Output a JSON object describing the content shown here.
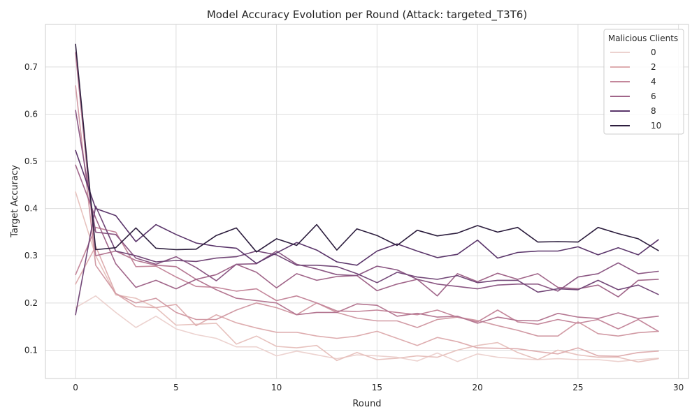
{
  "chart_data": {
    "type": "line",
    "title": "Model Accuracy Evolution per Round (Attack: targeted_T3T6)",
    "xlabel": "Round",
    "ylabel": "Target Accuracy",
    "xlim": [
      -1.5,
      30.5
    ],
    "ylim": [
      0.04,
      0.79
    ],
    "xticks": [
      0,
      5,
      10,
      15,
      20,
      25,
      30
    ],
    "yticks": [
      0.1,
      0.2,
      0.3,
      0.4,
      0.5,
      0.6,
      0.7
    ],
    "ytick_labels": [
      "0.1",
      "0.2",
      "0.3",
      "0.4",
      "0.5",
      "0.6",
      "0.7"
    ],
    "grid": true,
    "legend_title": "Malicious Clients",
    "legend_position": "top-right",
    "legend_entries": [
      "0",
      "2",
      "4",
      "6",
      "8",
      "10"
    ],
    "x": [
      0,
      1,
      2,
      3,
      4,
      5,
      6,
      7,
      8,
      9,
      10,
      11,
      12,
      13,
      14,
      15,
      16,
      17,
      18,
      19,
      20,
      21,
      22,
      23,
      24,
      25,
      26,
      27,
      28,
      29
    ],
    "series": [
      {
        "name": "0",
        "color": "#ecd2cf",
        "values": [
          0.19,
          0.215,
          0.18,
          0.148,
          0.172,
          0.145,
          0.133,
          0.125,
          0.107,
          0.107,
          0.088,
          0.098,
          0.09,
          0.082,
          0.09,
          0.088,
          0.085,
          0.077,
          0.094,
          0.076,
          0.092,
          0.085,
          0.082,
          0.08,
          0.082,
          0.08,
          0.08,
          0.076,
          0.08,
          0.083
        ]
      },
      {
        "name": "0",
        "color": "#e7c2be",
        "values": [
          0.435,
          0.3,
          0.217,
          0.21,
          0.19,
          0.153,
          0.155,
          0.157,
          0.113,
          0.13,
          0.108,
          0.105,
          0.11,
          0.078,
          0.095,
          0.08,
          0.083,
          0.088,
          0.085,
          0.1,
          0.11,
          0.116,
          0.095,
          0.08,
          0.1,
          0.09,
          0.085,
          0.085,
          0.075,
          0.082
        ]
      },
      {
        "name": "2",
        "color": "#deadaf",
        "values": [
          0.24,
          0.32,
          0.22,
          0.192,
          0.19,
          0.197,
          0.152,
          0.175,
          0.158,
          0.147,
          0.138,
          0.138,
          0.13,
          0.125,
          0.13,
          0.14,
          0.125,
          0.11,
          0.127,
          0.118,
          0.105,
          0.104,
          0.103,
          0.097,
          0.092,
          0.105,
          0.088,
          0.087,
          0.095,
          0.098
        ]
      },
      {
        "name": "2",
        "color": "#d19aa4",
        "values": [
          0.66,
          0.28,
          0.22,
          0.2,
          0.21,
          0.18,
          0.165,
          0.165,
          0.185,
          0.2,
          0.19,
          0.175,
          0.2,
          0.18,
          0.168,
          0.162,
          0.162,
          0.148,
          0.165,
          0.17,
          0.163,
          0.152,
          0.142,
          0.13,
          0.13,
          0.16,
          0.135,
          0.13,
          0.137,
          0.14
        ]
      },
      {
        "name": "4",
        "color": "#c4879b",
        "values": [
          0.26,
          0.36,
          0.35,
          0.277,
          0.278,
          0.255,
          0.235,
          0.233,
          0.225,
          0.23,
          0.205,
          0.215,
          0.2,
          0.183,
          0.182,
          0.185,
          0.18,
          0.175,
          0.185,
          0.17,
          0.16,
          0.185,
          0.16,
          0.155,
          0.165,
          0.157,
          0.165,
          0.145,
          0.165,
          0.14
        ]
      },
      {
        "name": "4",
        "color": "#b47691",
        "values": [
          0.73,
          0.3,
          0.31,
          0.29,
          0.28,
          0.277,
          0.25,
          0.228,
          0.21,
          0.205,
          0.2,
          0.175,
          0.18,
          0.18,
          0.198,
          0.195,
          0.172,
          0.178,
          0.17,
          0.172,
          0.157,
          0.17,
          0.163,
          0.162,
          0.178,
          0.17,
          0.167,
          0.179,
          0.167,
          0.172
        ]
      },
      {
        "name": "6",
        "color": "#a06589",
        "values": [
          0.492,
          0.38,
          0.283,
          0.233,
          0.248,
          0.23,
          0.25,
          0.26,
          0.282,
          0.265,
          0.232,
          0.262,
          0.248,
          0.256,
          0.258,
          0.226,
          0.24,
          0.25,
          0.215,
          0.262,
          0.245,
          0.263,
          0.25,
          0.262,
          0.233,
          0.23,
          0.238,
          0.213,
          0.248,
          0.25
        ]
      },
      {
        "name": "6",
        "color": "#8b5783",
        "values": [
          0.608,
          0.35,
          0.345,
          0.295,
          0.282,
          0.298,
          0.275,
          0.247,
          0.282,
          0.283,
          0.31,
          0.282,
          0.272,
          0.26,
          0.258,
          0.278,
          0.27,
          0.25,
          0.24,
          0.235,
          0.23,
          0.238,
          0.24,
          0.24,
          0.225,
          0.255,
          0.262,
          0.285,
          0.262,
          0.267
        ]
      },
      {
        "name": "8",
        "color": "#734878",
        "values": [
          0.175,
          0.405,
          0.31,
          0.3,
          0.287,
          0.29,
          0.288,
          0.295,
          0.298,
          0.31,
          0.302,
          0.28,
          0.28,
          0.277,
          0.262,
          0.243,
          0.265,
          0.255,
          0.25,
          0.258,
          0.243,
          0.248,
          0.248,
          0.223,
          0.23,
          0.228,
          0.248,
          0.228,
          0.238,
          0.218
        ]
      },
      {
        "name": "8",
        "color": "#5a356a",
        "values": [
          0.523,
          0.4,
          0.385,
          0.33,
          0.366,
          0.345,
          0.327,
          0.32,
          0.316,
          0.284,
          0.306,
          0.328,
          0.312,
          0.287,
          0.28,
          0.31,
          0.325,
          0.31,
          0.296,
          0.303,
          0.333,
          0.295,
          0.307,
          0.31,
          0.31,
          0.319,
          0.302,
          0.317,
          0.302,
          0.334
        ]
      },
      {
        "name": "10",
        "color": "#2d1e3e",
        "values": [
          0.748,
          0.313,
          0.317,
          0.359,
          0.316,
          0.313,
          0.314,
          0.343,
          0.359,
          0.308,
          0.336,
          0.322,
          0.366,
          0.312,
          0.357,
          0.343,
          0.322,
          0.354,
          0.342,
          0.348,
          0.364,
          0.35,
          0.36,
          0.329,
          0.33,
          0.329,
          0.36,
          0.347,
          0.336,
          0.311
        ]
      }
    ],
    "legend_colors": [
      "#ecd2cf",
      "#deadaf",
      "#c4879b",
      "#a06589",
      "#5a356a",
      "#2d1e3e"
    ]
  }
}
